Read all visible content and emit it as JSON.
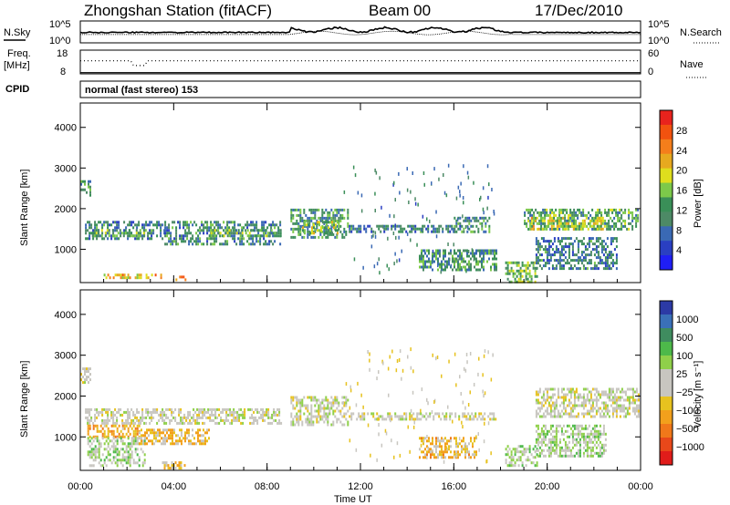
{
  "header": {
    "station": "Zhongshan Station (fitACF)",
    "beam": "Beam 00",
    "date": "17/Dec/2010"
  },
  "strip": {
    "nsky_label": "N.Sky",
    "nsky_ticks": [
      "10^5",
      "10^0"
    ],
    "nsearch_label": "N.Search",
    "nsearch_ticks": [
      "10^5",
      "10^0"
    ],
    "freq_label_1": "Freq.",
    "freq_label_2": "[MHz]",
    "freq_ticks": [
      "18",
      "8"
    ],
    "nave_label": "Nave",
    "nave_ticks": [
      "60",
      "0"
    ],
    "cpid_label": "CPID",
    "cpid_text": "normal (fast stereo) 153"
  },
  "panels": {
    "y_label": "Slant Range [km]",
    "y_ticks": [
      "4000",
      "3000",
      "2000",
      "1000"
    ],
    "x_label": "Time UT",
    "x_ticks": [
      "00:00",
      "04:00",
      "08:00",
      "12:00",
      "16:00",
      "20:00",
      "00:00"
    ]
  },
  "power_scale": {
    "label": "Power [dB]",
    "ticks": [
      "28",
      "24",
      "20",
      "16",
      "12",
      "8",
      "4"
    ],
    "colors": [
      "#e8231d",
      "#f2520f",
      "#f47e1b",
      "#e7a91f",
      "#dfde1d",
      "#7cc94a",
      "#3a8f58",
      "#4d8a66",
      "#3a69b4",
      "#2a3fc2",
      "#1f1ef5"
    ]
  },
  "velocity_scale": {
    "label": "Velocity [m s⁻¹]",
    "ticks": [
      "1000",
      "500",
      "100",
      "25",
      "−25",
      "−100",
      "−500",
      "−1000"
    ],
    "colors": [
      "#2c3aa5",
      "#3a70b8",
      "#3f8c5f",
      "#4db94a",
      "#8fd04a",
      "#c8c6c0",
      "#c8c6c0",
      "#e7c21f",
      "#f2a01c",
      "#f0781a",
      "#e8481a",
      "#e01c1a"
    ]
  },
  "chart_data": [
    {
      "type": "heatmap",
      "title": "Power",
      "ylabel": "Slant Range [km]",
      "xlabel": "Time UT",
      "xlim": [
        "00:00",
        "24:00"
      ],
      "ylim": [
        180,
        4600
      ],
      "colorbar": {
        "label": "Power [dB]",
        "range": [
          0,
          30
        ]
      },
      "regions": [
        {
          "t": [
            0.0,
            0.4
          ],
          "r": [
            2350,
            2700
          ],
          "v": 10
        },
        {
          "t": [
            0.2,
            3.6
          ],
          "r": [
            1250,
            1700
          ],
          "v": 9
        },
        {
          "t": [
            0.5,
            2.8
          ],
          "r": [
            1300,
            1500
          ],
          "v": 13
        },
        {
          "t": [
            1.0,
            3.5
          ],
          "r": [
            300,
            400
          ],
          "v": 20
        },
        {
          "t": [
            4.0,
            4.5
          ],
          "r": [
            250,
            350
          ],
          "v": 22
        },
        {
          "t": [
            3.6,
            8.6
          ],
          "r": [
            1100,
            1700
          ],
          "v": 10
        },
        {
          "t": [
            5.5,
            8.6
          ],
          "r": [
            1300,
            1500
          ],
          "v": 13
        },
        {
          "t": [
            9.0,
            11.5
          ],
          "r": [
            1300,
            2000
          ],
          "v": 11
        },
        {
          "t": [
            9.5,
            11.0
          ],
          "r": [
            1400,
            1700
          ],
          "v": 15
        },
        {
          "t": [
            11.5,
            16.0
          ],
          "r": [
            1400,
            1600
          ],
          "v": 9
        },
        {
          "t": [
            14.5,
            17.8
          ],
          "r": [
            500,
            1000
          ],
          "v": 11
        },
        {
          "t": [
            16.0,
            17.5
          ],
          "r": [
            1400,
            1800
          ],
          "v": 10
        },
        {
          "t": [
            18.2,
            19.6
          ],
          "r": [
            200,
            700
          ],
          "v": 14
        },
        {
          "t": [
            19.0,
            23.9
          ],
          "r": [
            1500,
            2000
          ],
          "v": 12
        },
        {
          "t": [
            19.3,
            22.5
          ],
          "r": [
            1500,
            1800
          ],
          "v": 17
        },
        {
          "t": [
            19.5,
            23.0
          ],
          "r": [
            500,
            1300
          ],
          "v": 9
        }
      ]
    },
    {
      "type": "heatmap",
      "title": "Velocity",
      "ylabel": "Slant Range [km]",
      "xlabel": "Time UT",
      "xlim": [
        "00:00",
        "24:00"
      ],
      "ylim": [
        180,
        4600
      ],
      "colorbar": {
        "label": "Velocity [m s⁻¹]",
        "range": [
          -1000,
          1000
        ]
      },
      "regions": [
        {
          "t": [
            0.0,
            0.4
          ],
          "r": [
            2350,
            2700
          ],
          "v": 0
        },
        {
          "t": [
            0.2,
            8.6
          ],
          "r": [
            1300,
            1700
          ],
          "v": 0
        },
        {
          "t": [
            0.3,
            2.5
          ],
          "r": [
            1000,
            1300
          ],
          "v": -400
        },
        {
          "t": [
            0.3,
            2.8
          ],
          "r": [
            300,
            1000
          ],
          "v": 150
        },
        {
          "t": [
            2.5,
            5.5
          ],
          "r": [
            800,
            1200
          ],
          "v": -250
        },
        {
          "t": [
            3.5,
            4.5
          ],
          "r": [
            250,
            400
          ],
          "v": -250
        },
        {
          "t": [
            9.0,
            11.5
          ],
          "r": [
            1300,
            2000
          ],
          "v": 0
        },
        {
          "t": [
            11.5,
            17.8
          ],
          "r": [
            1400,
            1600
          ],
          "v": 0
        },
        {
          "t": [
            14.5,
            17.0
          ],
          "r": [
            500,
            1000
          ],
          "v": -300
        },
        {
          "t": [
            18.2,
            19.6
          ],
          "r": [
            300,
            800
          ],
          "v": 150
        },
        {
          "t": [
            19.5,
            23.9
          ],
          "r": [
            1500,
            2200
          ],
          "v": 0
        },
        {
          "t": [
            19.5,
            22.5
          ],
          "r": [
            500,
            1300
          ],
          "v": 200
        }
      ]
    }
  ]
}
